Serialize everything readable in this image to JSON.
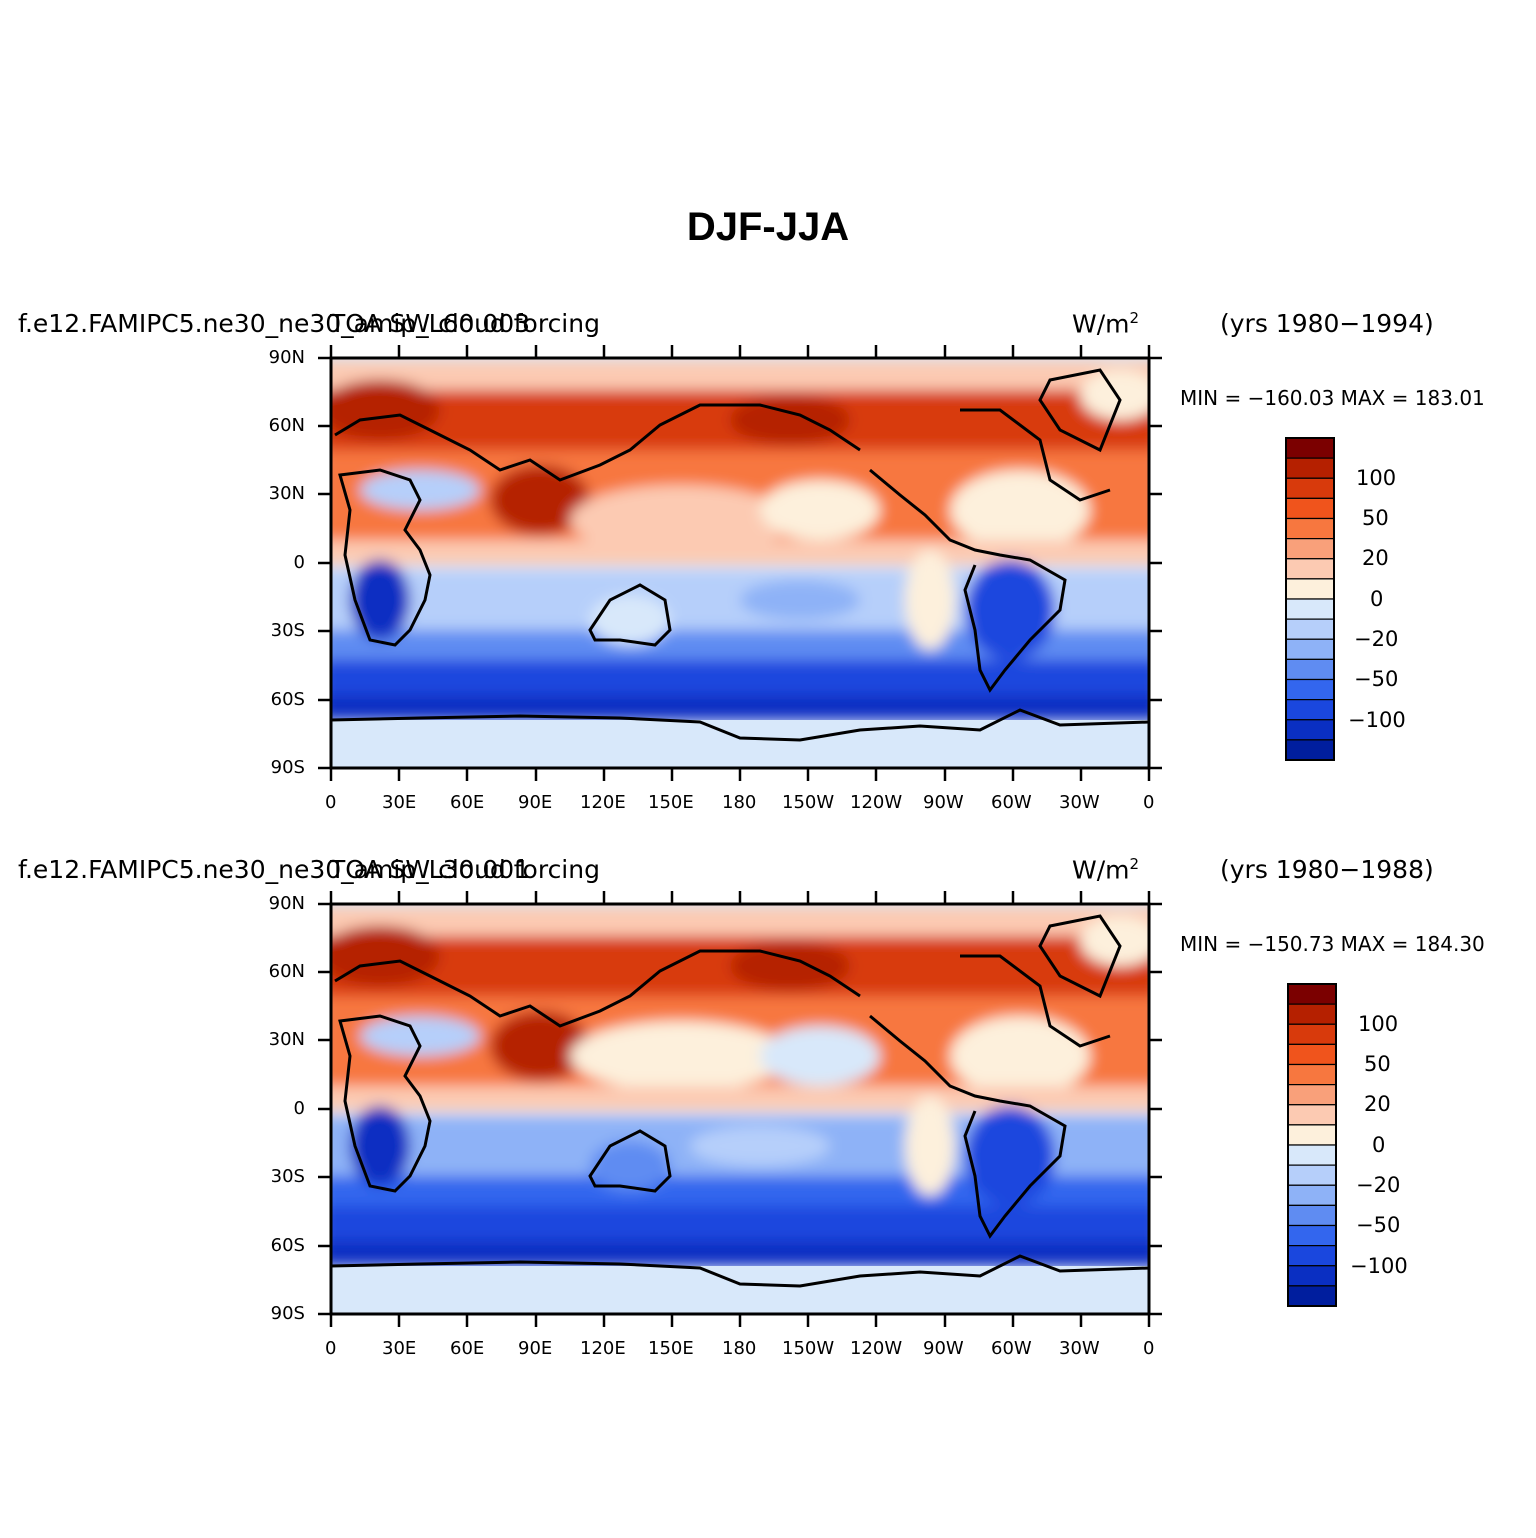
{
  "title": "DJF-JJA",
  "panels": [
    {
      "case_name": "f.e12.FAMIPC5.ne30_ne30_amip_L60.003",
      "variable": "TOA SW cloud forcing",
      "units": "W/m",
      "units_exp": "2",
      "years": "(yrs 1980−1994)",
      "minmax": "MIN = −160.03 MAX = 183.01"
    },
    {
      "case_name": "f.e12.FAMIPC5.ne30_ne30_amip_L30.001",
      "variable": "TOA SW cloud forcing",
      "units": "W/m",
      "units_exp": "2",
      "years": "(yrs 1980−1988)",
      "minmax": "MIN = −150.73 MAX = 184.30"
    }
  ],
  "lat_ticks": [
    "90N",
    "60N",
    "30N",
    "0",
    "30S",
    "60S",
    "90S"
  ],
  "lon_ticks": [
    "0",
    "30E",
    "60E",
    "90E",
    "120E",
    "150E",
    "180",
    "150W",
    "120W",
    "90W",
    "60W",
    "30W",
    "0"
  ],
  "colorbar": {
    "labels": [
      "100",
      "50",
      "20",
      "0",
      "−20",
      "−50",
      "−100"
    ],
    "colors": [
      "#7b0000",
      "#b52000",
      "#d83a0c",
      "#f0541c",
      "#f7773f",
      "#f9a07a",
      "#fccab2",
      "#fdf0dc",
      "#d8e8fa",
      "#b6cffa",
      "#8eb2f7",
      "#5f8cf2",
      "#3366ee",
      "#1a47de",
      "#0a2fc2",
      "#001e9e"
    ]
  }
}
